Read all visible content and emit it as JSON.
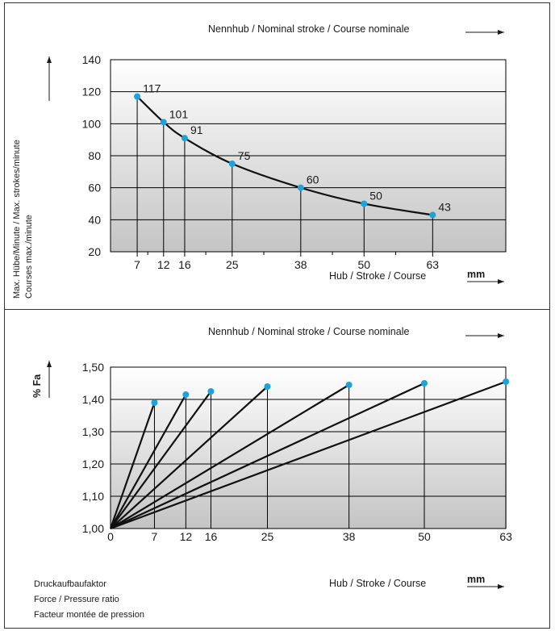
{
  "colors": {
    "point": "#1ba3dc",
    "curve": "#111111",
    "grid": "#000000",
    "bg_top": "#ffffff",
    "bg_bottom": "#c8c8c8"
  },
  "chart_data": [
    {
      "type": "line",
      "header": "Nennhub  /  Nominal stroke  /  Course nominale",
      "ylabel_1": "Max. Hübe/Minute / Max. strokes/minute",
      "ylabel_2": "Courses max./minute",
      "xlabel": "Hub  /  Stroke  /  Course",
      "xunit": "mm",
      "ylim": [
        20,
        140
      ],
      "yticks": [
        "20",
        "40",
        "60",
        "80",
        "100",
        "120",
        "140"
      ],
      "xticks": [
        "7",
        "12",
        "16",
        "25",
        "38",
        "50",
        "63"
      ],
      "x": [
        7,
        12,
        16,
        25,
        38,
        50,
        63
      ],
      "values": [
        117,
        101,
        91,
        75,
        60,
        50,
        43
      ],
      "data_labels": [
        "117",
        "101",
        "91",
        "75",
        "60",
        "50",
        "43"
      ]
    },
    {
      "type": "line",
      "header": "Nennhub  /  Nominal stroke  /  Course nominale",
      "ylabel": "% Fa",
      "xlabel": "Hub  /  Stroke  /  Course",
      "xunit": "mm",
      "ylim": [
        1.0,
        1.5
      ],
      "yticks": [
        "1,00",
        "1,10",
        "1,20",
        "1,30",
        "1,40",
        "1,50"
      ],
      "xticks": [
        "0",
        "7",
        "12",
        "16",
        "25",
        "38",
        "50",
        "63"
      ],
      "x": [
        7,
        12,
        16,
        25,
        38,
        50,
        63
      ],
      "values": [
        1.39,
        1.415,
        1.425,
        1.44,
        1.445,
        1.45,
        1.455
      ],
      "legend_lines": [
        "Druckaufbaufaktor",
        "Force / Pressure ratio",
        "Facteur montée de pression"
      ]
    }
  ]
}
